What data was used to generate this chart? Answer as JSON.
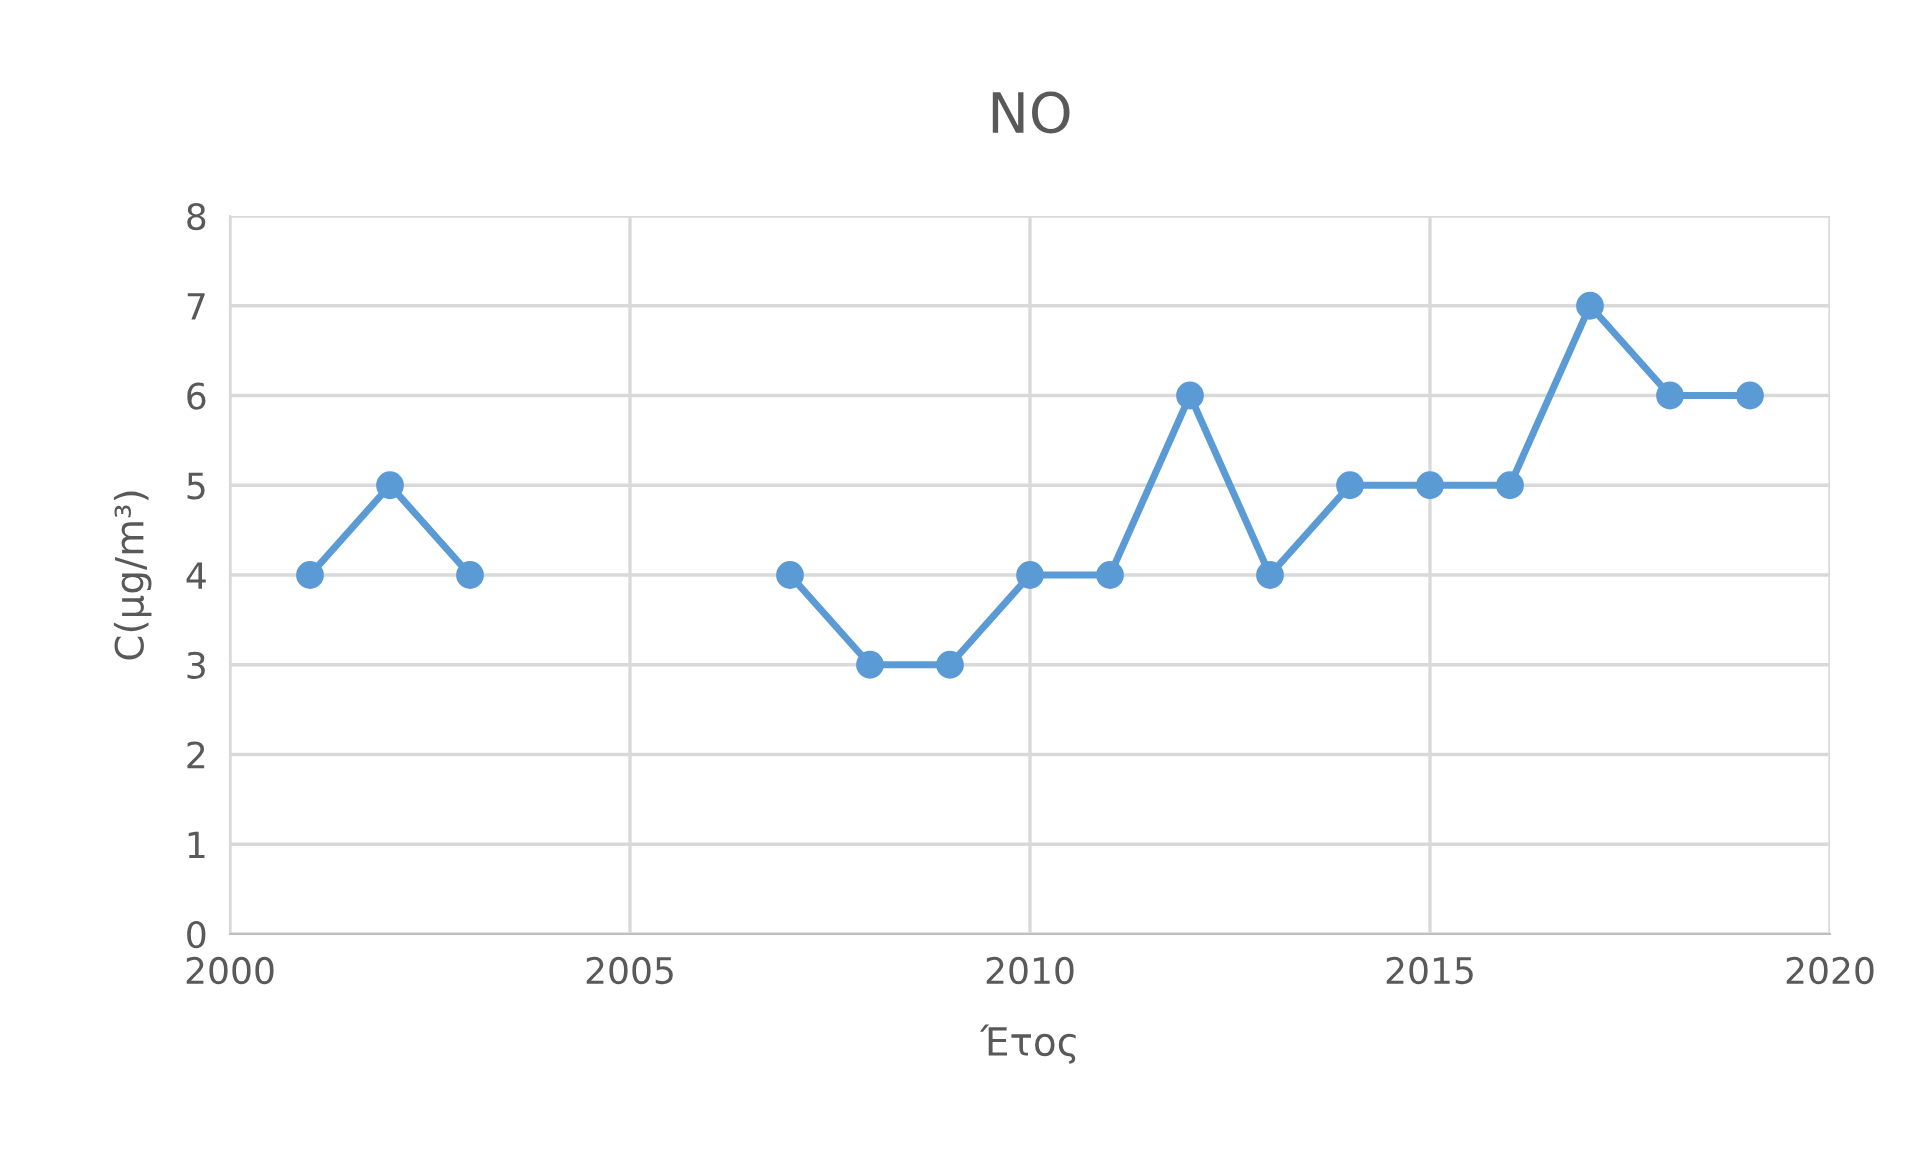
{
  "chart_data": {
    "type": "line",
    "title": "NO",
    "xlabel": "Έτος",
    "ylabel": "C(μg/m³)",
    "x": [
      2001,
      2002,
      2003,
      2004,
      2005,
      2006,
      2007,
      2008,
      2009,
      2010,
      2011,
      2012,
      2013,
      2014,
      2015,
      2016,
      2017,
      2018,
      2019
    ],
    "series": [
      {
        "color": "#5b9bd5",
        "values": [
          4,
          5,
          4,
          null,
          null,
          null,
          4,
          3,
          3,
          4,
          4,
          6,
          4,
          5,
          5,
          5,
          7,
          6,
          6
        ]
      }
    ],
    "xlim": [
      2000,
      2020
    ],
    "xticks": [
      2000,
      2005,
      2010,
      2015,
      2020
    ],
    "ylim": [
      0,
      8
    ],
    "yticks": [
      0,
      1,
      2,
      3,
      4,
      5,
      6,
      7,
      8
    ],
    "grid": true,
    "marker": "circle",
    "line_style": "solid"
  }
}
